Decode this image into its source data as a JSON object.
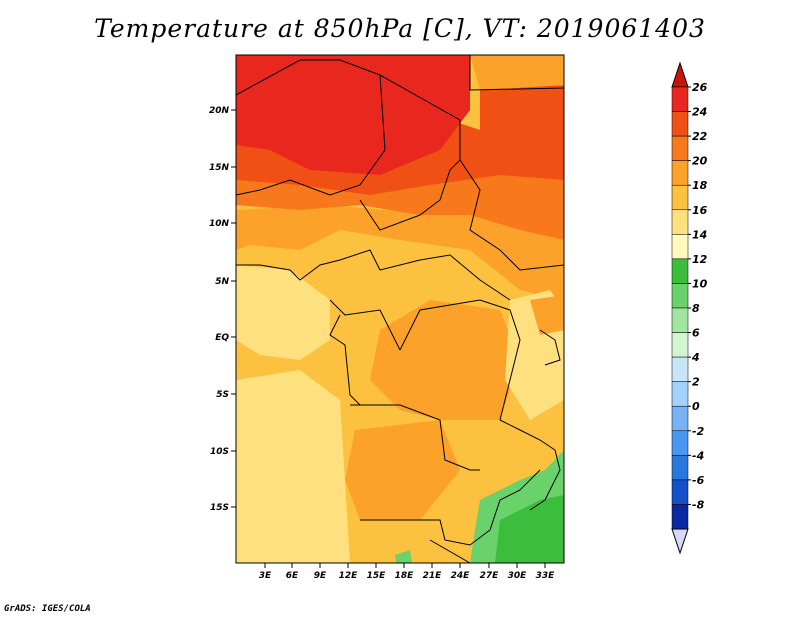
{
  "title": "Temperature at 850hPa [C], VT: 2019061403",
  "credit": "GrADS: IGES/COLA",
  "map": {
    "lat_labels": [
      "20N",
      "15N",
      "10N",
      "5N",
      "EQ",
      "5S",
      "10S",
      "15S"
    ],
    "lon_labels": [
      "3E",
      "6E",
      "9E",
      "12E",
      "15E",
      "18E",
      "21E",
      "24E",
      "27E",
      "30E",
      "33E"
    ]
  },
  "colorbar": {
    "labels": [
      "26",
      "24",
      "22",
      "20",
      "18",
      "16",
      "14",
      "12",
      "10",
      "8",
      "6",
      "4",
      "2",
      "0",
      "-2",
      "-4",
      "-6",
      "-8"
    ],
    "colors": [
      "#e8281e",
      "#f05014",
      "#f8781c",
      "#fca22a",
      "#fdc140",
      "#fee07e",
      "#fefabc",
      "#3cbe3c",
      "#6ad26a",
      "#a0e6a0",
      "#d2f5d2",
      "#c8e6fa",
      "#a0d2fa",
      "#78b4f5",
      "#4a96f0",
      "#2a78dc",
      "#1450c8",
      "#0a28a0",
      "#000064"
    ],
    "top_arrow_color": "#c8140a",
    "bottom_arrow_color": "#d8d8f8"
  }
}
